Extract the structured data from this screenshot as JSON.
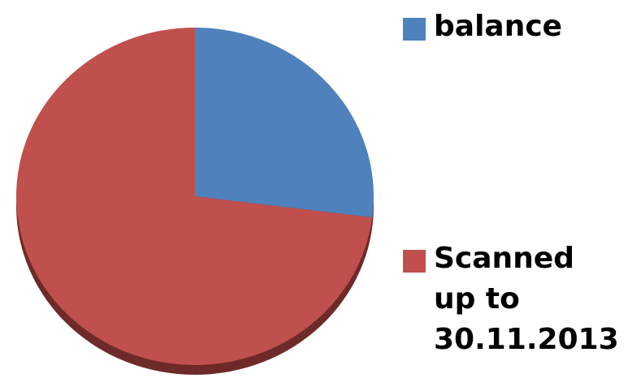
{
  "chart_data": {
    "type": "pie",
    "title": "",
    "categories": [
      "balance",
      "Scanned up to 30.11.2013"
    ],
    "values": [
      27,
      73
    ],
    "colors": [
      "#4F81BD",
      "#C0504D"
    ],
    "shadow_color": "#6E2A28",
    "legend_position": "right",
    "start_angle": "12 o'clock, clockwise"
  }
}
